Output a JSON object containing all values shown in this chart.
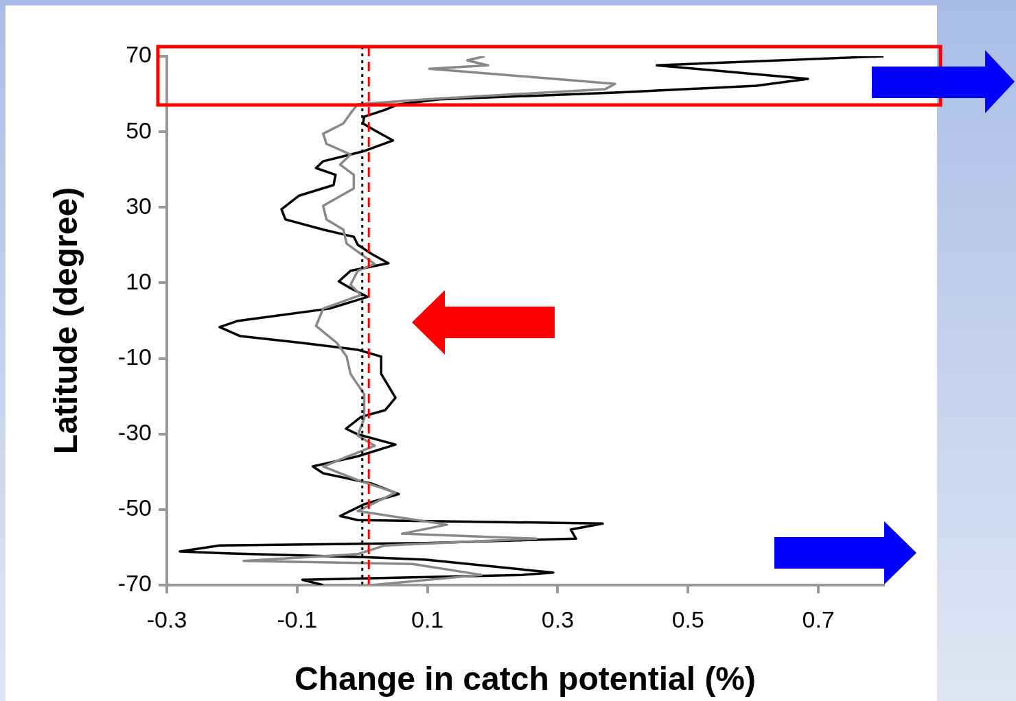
{
  "chart_data": {
    "type": "line",
    "xlabel": "Change in catch potential (%)",
    "ylabel": "Latitude (degree)",
    "xlim": [
      -0.3,
      0.8
    ],
    "xticks": [
      -0.3,
      -0.1,
      0.1,
      0.3,
      0.5,
      0.7
    ],
    "ylim": [
      -70,
      70
    ],
    "yticks": [
      -70,
      -50,
      -30,
      -10,
      10,
      30,
      50,
      70
    ],
    "grid": false,
    "legend": false,
    "series": [
      {
        "color": "#888888",
        "x": [
          0.188,
          0.161,
          0.193,
          0.103,
          0.388,
          0.373,
          0.098,
          -0.007,
          -0.018,
          -0.029,
          -0.06,
          -0.055,
          -0.018,
          -0.034,
          -0.013,
          -0.013,
          -0.06,
          -0.055,
          -0.029,
          -0.024,
          0.019,
          -0.007,
          -0.018,
          -0.002,
          -0.06,
          -0.071,
          -0.039,
          -0.024,
          -0.018,
          0.003,
          0.003,
          -0.007,
          0.019,
          -0.06,
          -0.007,
          0.051,
          -0.007,
          0.13,
          0.061,
          0.267,
          0.035,
          -0.007,
          -0.182,
          0.077,
          0.183,
          0.014
        ],
        "values": [
          70,
          68.9,
          67.6,
          66.7,
          62.7,
          61.3,
          58.6,
          57.3,
          54.9,
          52.2,
          49.5,
          46.8,
          44,
          41.3,
          38.6,
          35,
          30.4,
          26.8,
          24.1,
          20.4,
          15,
          13.2,
          9.5,
          6.8,
          3.2,
          -1.4,
          -5.9,
          -9.5,
          -14.1,
          -19.5,
          -25.9,
          -30.4,
          -33.1,
          -38.6,
          -42.2,
          -45.5,
          -50.4,
          -54,
          -56.4,
          -57.7,
          -59.5,
          -61.8,
          -63.6,
          -64.4,
          -67.3,
          -70
        ]
      },
      {
        "color": "#000000",
        "x": [
          0.8,
          0.452,
          0.684,
          0.605,
          0.394,
          0.119,
          0.056,
          0.035,
          0.003,
          0.001,
          0.019,
          0.047,
          0.003,
          -0.06,
          -0.071,
          -0.041,
          -0.044,
          -0.097,
          -0.124,
          -0.118,
          -0.06,
          -0.013,
          -0.007,
          0.014,
          0.04,
          -0.018,
          -0.036,
          -0.018,
          0.008,
          -0.05,
          -0.145,
          -0.192,
          -0.219,
          -0.187,
          -0.092,
          -0.007,
          0.029,
          0.029,
          0.051,
          0.035,
          -0.002,
          -0.025,
          -0.007,
          0.051,
          -0.007,
          -0.076,
          -0.06,
          0.014,
          0.056,
          0.003,
          -0.034,
          -0.007,
          0.369,
          0.32,
          0.328,
          0.098,
          -0.219,
          -0.28,
          -0.208,
          0.003,
          0.098,
          0.293,
          0.246,
          -0.092,
          -0.06
        ],
        "values": [
          70,
          67.6,
          64,
          62.2,
          60.4,
          58.6,
          57.3,
          55.8,
          54,
          52.2,
          50.4,
          47.7,
          44.9,
          42.2,
          40.4,
          38.6,
          35.9,
          33.1,
          29.5,
          26.8,
          24.1,
          22.2,
          20.1,
          17.7,
          15.2,
          13.2,
          10.4,
          8.6,
          6.3,
          3.2,
          1,
          -0.1,
          -1.7,
          -4.1,
          -5.9,
          -7.7,
          -9.5,
          -14.1,
          -20.4,
          -23.7,
          -25.5,
          -28.6,
          -30.1,
          -32.8,
          -35.9,
          -38.6,
          -40.4,
          -43.1,
          -45.9,
          -48.6,
          -51.7,
          -52.8,
          -53.7,
          -55.3,
          -57.7,
          -58.9,
          -59.5,
          -61.1,
          -61.6,
          -62.6,
          -63.3,
          -66.7,
          -67.3,
          -68.6,
          -70
        ]
      }
    ],
    "ref_lines": [
      {
        "axis": "x",
        "value": 0.01,
        "color": "#ff0000",
        "line_style": "dashed"
      },
      {
        "axis": "x",
        "value": 0,
        "color": "#000000",
        "line_style": "dotted"
      }
    ]
  }
}
